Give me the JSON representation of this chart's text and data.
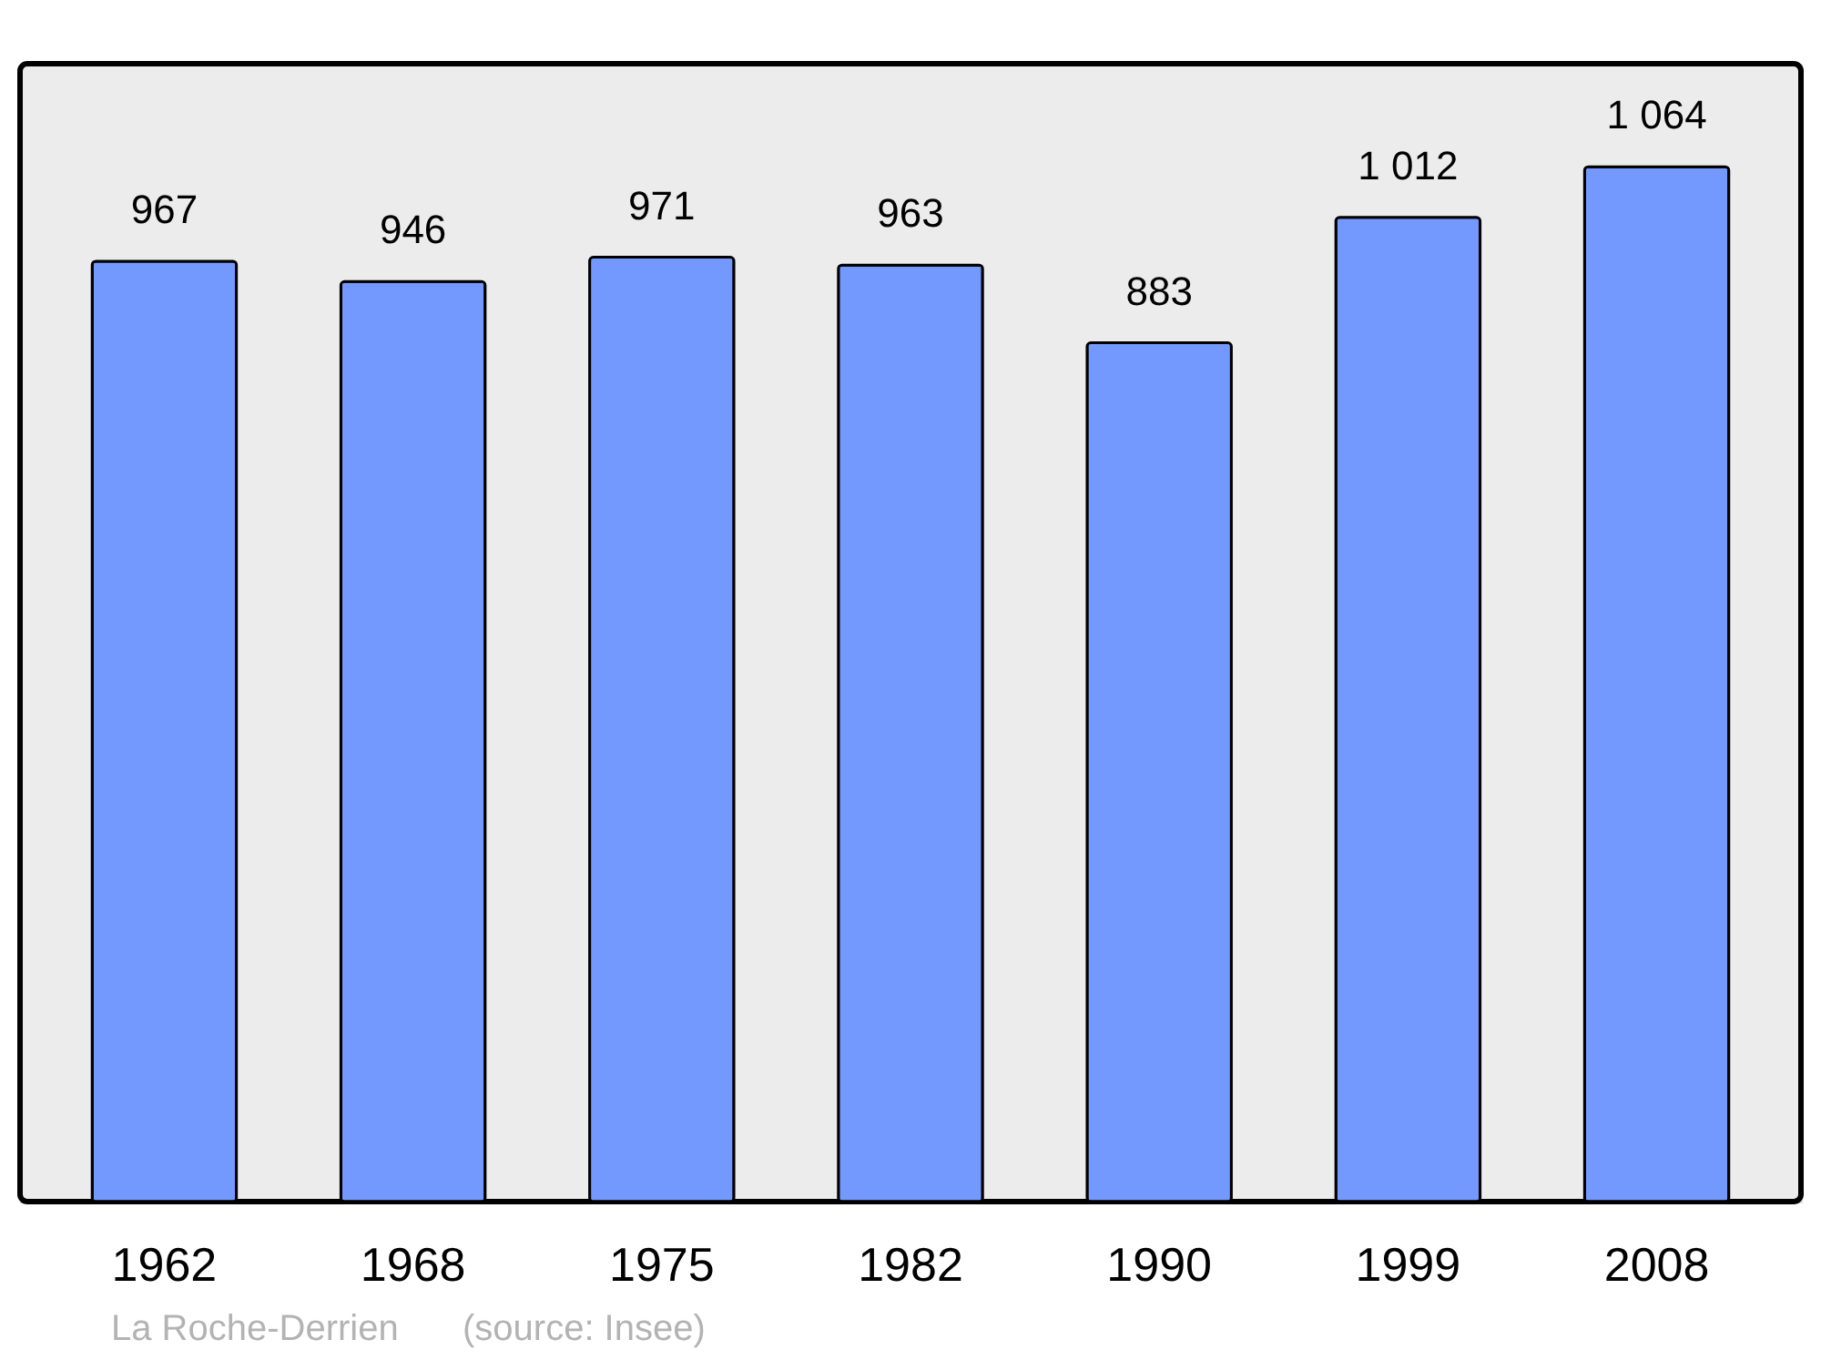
{
  "chart_data": {
    "type": "bar",
    "categories": [
      "1962",
      "1968",
      "1975",
      "1982",
      "1990",
      "1999",
      "2008"
    ],
    "values": [
      967,
      946,
      971,
      963,
      883,
      1012,
      1064
    ],
    "value_labels": [
      "967",
      "946",
      "971",
      "963",
      "883",
      "1 012",
      "1 064"
    ],
    "color": "#7399ff",
    "ylim": [
      0,
      1170
    ],
    "tick_labels": "x",
    "annotations": [
      "La Roche-Derrien",
      "(source: Insee)"
    ]
  }
}
